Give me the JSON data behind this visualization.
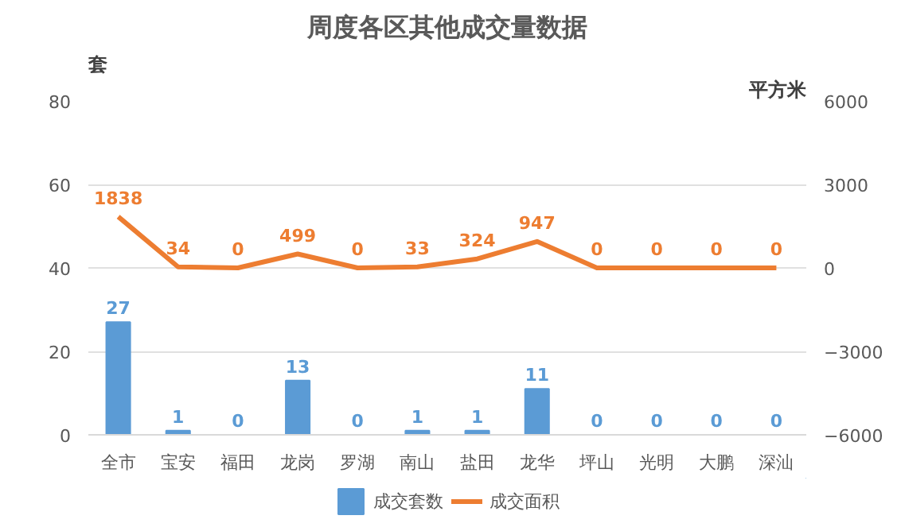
{
  "chart_data": {
    "type": "bar",
    "title": "周度各区其他成交量数据",
    "ylabel": "套",
    "y2label": "平方米",
    "categories": [
      "全市",
      "宝安",
      "福田",
      "龙岗",
      "罗湖",
      "南山",
      "盐田",
      "龙华",
      "坪山",
      "光明",
      "大鹏",
      "深汕"
    ],
    "series": [
      {
        "name": "成交套数",
        "type": "bar",
        "color": "#5b9bd5",
        "values": [
          27,
          1,
          0,
          13,
          0,
          1,
          1,
          11,
          0,
          0,
          0,
          0
        ]
      },
      {
        "name": "成交面积",
        "type": "line",
        "axis": "y2",
        "color": "#ed7d31",
        "values": [
          1838,
          34,
          0,
          499,
          0,
          33,
          324,
          947,
          0,
          0,
          0,
          0
        ]
      }
    ],
    "ylim": [
      0,
      80
    ],
    "yticks": [
      0,
      20,
      40,
      60,
      80
    ],
    "y2lim": [
      -6000,
      6000
    ],
    "y2ticks": [
      -6000,
      -3000,
      0,
      3000,
      6000
    ],
    "grid": "y",
    "legend": "bottom",
    "data_labels": true
  }
}
